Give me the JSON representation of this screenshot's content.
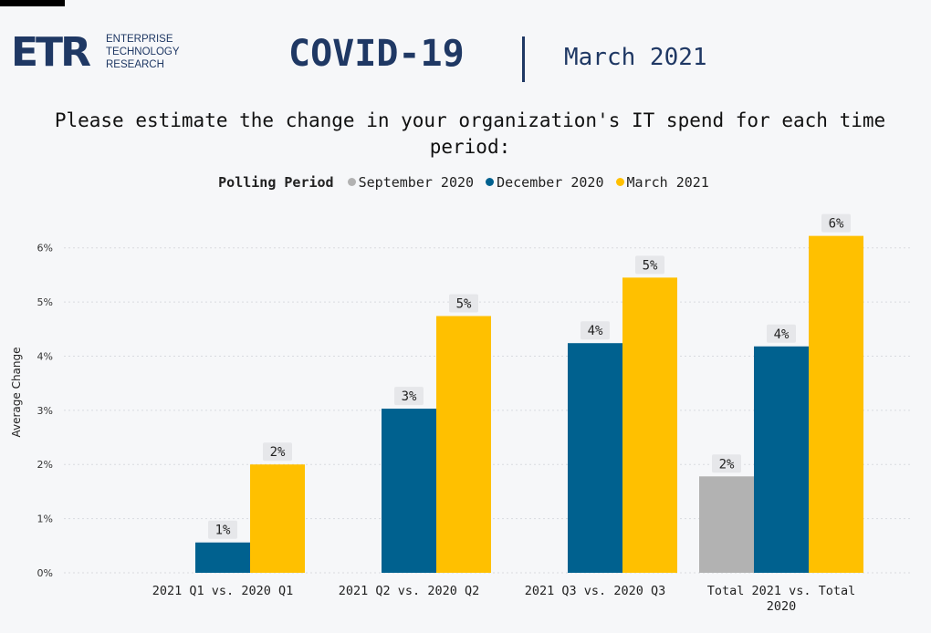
{
  "header": {
    "logo_mark": "ETR",
    "logo_lines": [
      "ENTERPRISE",
      "TECHNOLOGY",
      "RESEARCH"
    ],
    "title": "COVID-19",
    "subtitle": "March 2021"
  },
  "question": "Please estimate the change in your organization's IT spend for each time period:",
  "colors": {
    "September 2020": "#b2b2b2",
    "December 2020": "#00618f",
    "March 2021": "#ffc000"
  },
  "chart_data": {
    "type": "bar",
    "legend_title": "Polling Period",
    "legend_placement": "top-center",
    "ylabel": "Average Change",
    "ylim": [
      0,
      6.5
    ],
    "yticks": [
      "0%",
      "1%",
      "2%",
      "3%",
      "4%",
      "5%",
      "6%"
    ],
    "grid": true,
    "categories": [
      "2021 Q1 vs. 2020 Q1",
      "2021 Q2 vs. 2020 Q2",
      "2021 Q3 vs. 2020 Q3",
      "Total 2021 vs. Total 2020"
    ],
    "category_lines": [
      [
        "2021 Q1 vs. 2020 Q1"
      ],
      [
        "2021 Q2 vs. 2020 Q2"
      ],
      [
        "2021 Q3 vs. 2020 Q3"
      ],
      [
        "Total 2021 vs. Total",
        "2020"
      ]
    ],
    "series": [
      {
        "name": "September 2020",
        "values": [
          null,
          null,
          null,
          1.78
        ],
        "labels": [
          "",
          "",
          "",
          "2%"
        ]
      },
      {
        "name": "December 2020",
        "values": [
          0.56,
          3.03,
          4.24,
          4.18
        ],
        "labels": [
          "1%",
          "3%",
          "4%",
          "4%"
        ]
      },
      {
        "name": "March 2021",
        "values": [
          2.0,
          4.74,
          5.45,
          6.22
        ],
        "labels": [
          "2%",
          "5%",
          "5%",
          "6%"
        ]
      }
    ]
  }
}
